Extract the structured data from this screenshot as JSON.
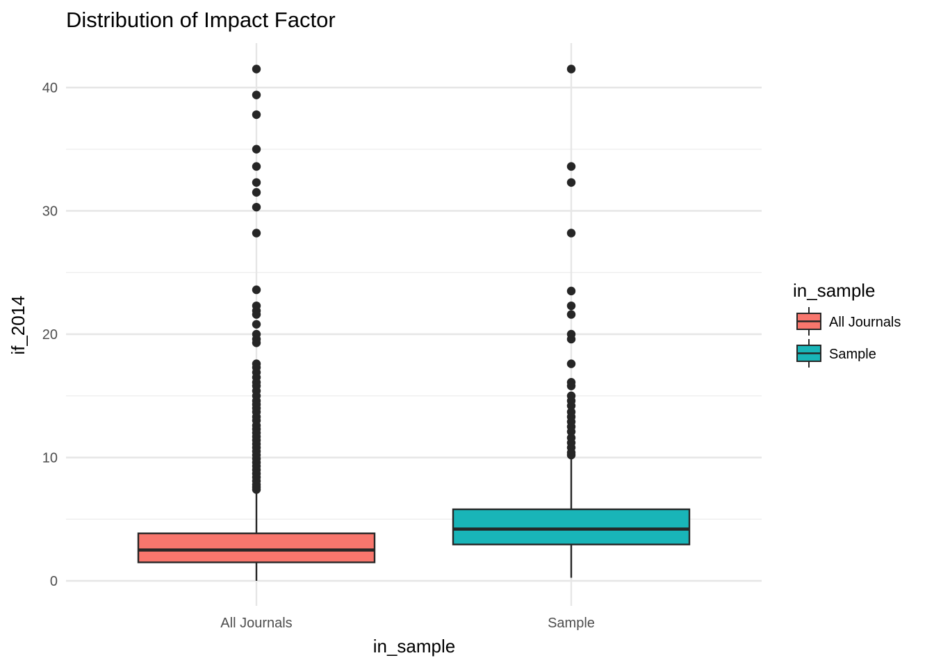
{
  "chart_data": {
    "type": "boxplot",
    "title": "Distribution of Impact Factor",
    "xlabel": "in_sample",
    "ylabel": "if_2014",
    "ylim": [
      0,
      43.5
    ],
    "y_ticks": [
      0,
      10,
      20,
      30,
      40
    ],
    "y_minor_ticks": [
      5,
      15,
      25,
      35
    ],
    "grid": true,
    "legend": {
      "title": "in_sample",
      "position": "right"
    },
    "categories": [
      "All Journals",
      "Sample"
    ],
    "series": [
      {
        "name": "All Journals",
        "color": "#f8766d",
        "whisker_low": 0.0,
        "q1": 1.5,
        "median": 2.5,
        "q3": 3.85,
        "whisker_high": 7.3,
        "outliers": [
          41.5,
          39.4,
          37.8,
          35.0,
          33.6,
          32.3,
          31.5,
          30.3,
          28.2,
          23.6,
          22.3,
          21.9,
          21.6,
          20.8,
          20.0,
          19.6,
          19.3,
          17.6,
          17.3,
          16.9,
          16.5,
          16.1,
          15.8,
          15.4,
          15.0,
          14.6,
          14.3,
          14.0,
          13.7,
          13.3,
          13.0,
          12.6,
          12.3,
          12.0,
          11.7,
          11.4,
          11.1,
          10.8,
          10.5,
          10.2,
          9.9,
          9.6,
          9.3,
          9.0,
          8.7,
          8.4,
          8.1,
          7.8,
          7.6,
          7.4
        ]
      },
      {
        "name": "Sample",
        "color": "#19b5b8",
        "whisker_low": 0.25,
        "q1": 2.95,
        "median": 4.2,
        "q3": 5.8,
        "whisker_high": 10.0,
        "outliers": [
          41.5,
          33.6,
          32.3,
          28.2,
          23.5,
          22.3,
          21.6,
          20.0,
          19.6,
          17.6,
          16.1,
          15.8,
          15.0,
          14.6,
          14.2,
          13.7,
          13.3,
          12.9,
          12.5,
          12.1,
          11.6,
          11.2,
          10.8,
          10.4,
          10.2
        ]
      }
    ]
  }
}
